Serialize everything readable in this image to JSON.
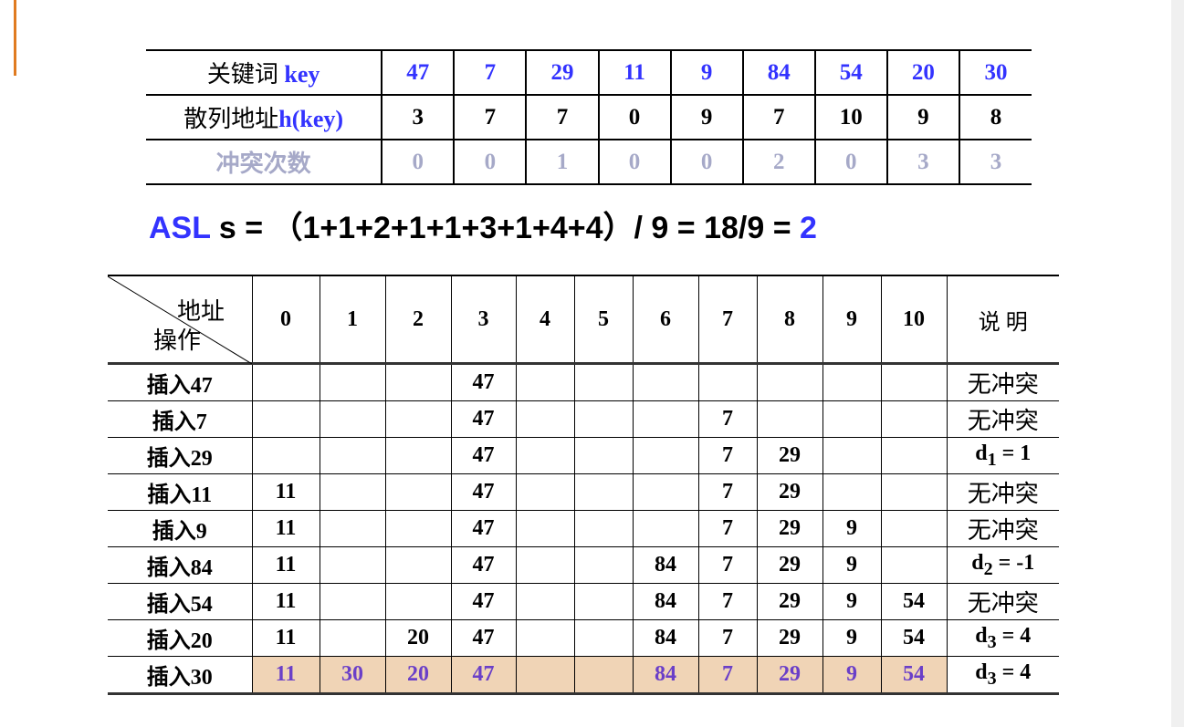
{
  "colors": {
    "accent": "#e07b20",
    "blue": "#3333ff",
    "grey": "#a6a9c8",
    "highlight": "#f0d4b6",
    "highlight_text": "#6a3fc8"
  },
  "top_table": {
    "row_key": {
      "label_cn": "关键词 ",
      "label_en": "key",
      "values": [
        "47",
        "7",
        "29",
        "11",
        "9",
        "84",
        "54",
        "20",
        "30"
      ]
    },
    "row_hash": {
      "label_cn": "散列地址",
      "label_en": "h(key)",
      "values": [
        "3",
        "7",
        "7",
        "0",
        "9",
        "7",
        "10",
        "9",
        "8"
      ]
    },
    "row_conflicts": {
      "label_cn": "冲突次数",
      "values": [
        "0",
        "0",
        "1",
        "0",
        "0",
        "2",
        "0",
        "3",
        "3"
      ]
    }
  },
  "asl": {
    "prefix": "ASL",
    "formula": " s = （1+1+2+1+1+3+1+4+4）/ 9 = 18/9 = ",
    "result": "2"
  },
  "bottom_table": {
    "corner_top": "地址",
    "corner_bottom": "操作",
    "addresses": [
      "0",
      "1",
      "2",
      "3",
      "4",
      "5",
      "6",
      "7",
      "8",
      "9",
      "10"
    ],
    "note_header": "说 明",
    "rows": [
      {
        "op": "插入47",
        "cells": [
          "",
          "",
          "",
          "47",
          "",
          "",
          "",
          "",
          "",
          "",
          ""
        ],
        "note": "无冲突"
      },
      {
        "op": "插入7",
        "cells": [
          "",
          "",
          "",
          "47",
          "",
          "",
          "",
          "7",
          "",
          "",
          ""
        ],
        "note": "无冲突"
      },
      {
        "op": "插入29",
        "cells": [
          "",
          "",
          "",
          "47",
          "",
          "",
          "",
          "7",
          "29",
          "",
          ""
        ],
        "note": "d",
        "sub": "1",
        "rest": " = 1"
      },
      {
        "op": "插入11",
        "cells": [
          "11",
          "",
          "",
          "47",
          "",
          "",
          "",
          "7",
          "29",
          "",
          ""
        ],
        "note": "无冲突"
      },
      {
        "op": "插入9",
        "cells": [
          "11",
          "",
          "",
          "47",
          "",
          "",
          "",
          "7",
          "29",
          "9",
          ""
        ],
        "note": "无冲突"
      },
      {
        "op": "插入84",
        "cells": [
          "11",
          "",
          "",
          "47",
          "",
          "",
          "84",
          "7",
          "29",
          "9",
          ""
        ],
        "note": "d",
        "sub": "2",
        "rest": " = -1"
      },
      {
        "op": "插入54",
        "cells": [
          "11",
          "",
          "",
          "47",
          "",
          "",
          "84",
          "7",
          "29",
          "9",
          "54"
        ],
        "note": "无冲突"
      },
      {
        "op": "插入20",
        "cells": [
          "11",
          "",
          "20",
          "47",
          "",
          "",
          "84",
          "7",
          "29",
          "9",
          "54"
        ],
        "note": "d",
        "sub": "3",
        "rest": " = 4"
      },
      {
        "op": "插入30",
        "cells": [
          "11",
          "30",
          "20",
          "47",
          "",
          "",
          "84",
          "7",
          "29",
          "9",
          "54"
        ],
        "note": "d",
        "sub": "3",
        "rest": " = 4",
        "highlight": true
      }
    ]
  }
}
